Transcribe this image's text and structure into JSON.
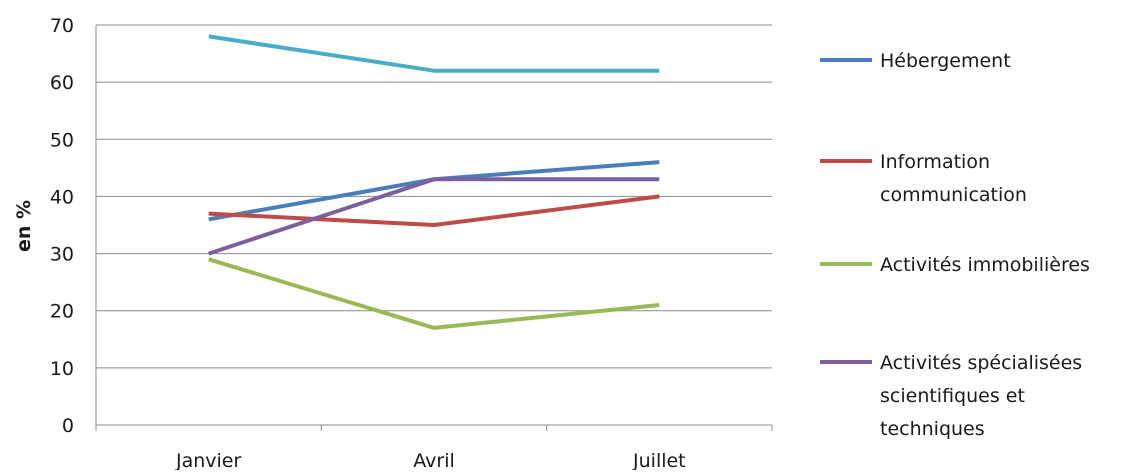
{
  "chart_data": {
    "type": "line",
    "title": "",
    "xlabel": "",
    "ylabel": "en %",
    "categories": [
      "Janvier",
      "Avril",
      "Juillet"
    ],
    "ylim": [
      0,
      70
    ],
    "yticks": [
      0,
      10,
      20,
      30,
      40,
      50,
      60,
      70
    ],
    "grid": true,
    "legend_position": "right",
    "series": [
      {
        "name": "Hébergement",
        "color": "#4a7ebb",
        "values": [
          36,
          43,
          46
        ],
        "in_legend": true
      },
      {
        "name": "Information communication",
        "color": "#be4b48",
        "values": [
          37,
          35,
          40
        ],
        "in_legend": true
      },
      {
        "name": "Activités immobilières",
        "color": "#98b954",
        "values": [
          29,
          17,
          21
        ],
        "in_legend": true
      },
      {
        "name": "Activités spécialisées scientifiques et techniques",
        "color": "#7d5fa0",
        "values": [
          30,
          43,
          43
        ],
        "in_legend": true
      },
      {
        "name": "",
        "color": "#4bacc6",
        "values": [
          68,
          62,
          62
        ],
        "in_legend": false
      }
    ],
    "legend_lines": [
      [
        "Hébergement"
      ],
      [
        "Information",
        "communication"
      ],
      [
        "Activités immobilières"
      ],
      [
        "Activités spécialisées",
        "scientifiques et",
        "techniques"
      ]
    ]
  }
}
